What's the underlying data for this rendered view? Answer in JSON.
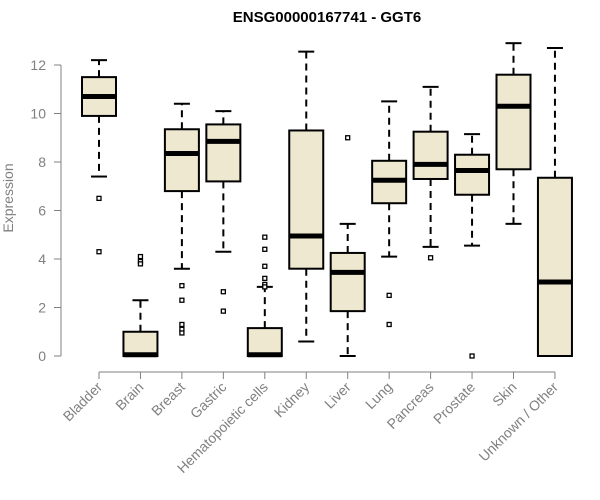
{
  "chart_data": {
    "type": "boxplot",
    "title": "ENSG00000167741 - GGT6",
    "xlabel": "",
    "ylabel": "Expression",
    "ylim": [
      0,
      12.5
    ],
    "yticks": [
      0,
      2,
      4,
      6,
      8,
      10,
      12
    ],
    "grid": false,
    "box_fill": "#efe8d0",
    "categories": [
      "Bladder",
      "Brain",
      "Breast",
      "Gastric",
      "Hematopoietic cells",
      "Kidney",
      "Liver",
      "Lung",
      "Pancreas",
      "Prostate",
      "Skin",
      "Unknown / Other"
    ],
    "boxes": [
      {
        "name": "Bladder",
        "whisker_low": 7.4,
        "q1": 9.9,
        "median": 10.7,
        "q3": 11.5,
        "whisker_high": 12.2,
        "outliers": [
          6.5,
          4.3
        ]
      },
      {
        "name": "Brain",
        "whisker_low": 0.0,
        "q1": 0.0,
        "median": 0.05,
        "q3": 1.0,
        "whisker_high": 2.3,
        "outliers": [
          4.1,
          3.9,
          3.8
        ]
      },
      {
        "name": "Breast",
        "whisker_low": 3.6,
        "q1": 6.8,
        "median": 8.35,
        "q3": 9.35,
        "whisker_high": 10.4,
        "outliers": [
          2.9,
          2.3,
          1.3,
          1.1,
          0.95
        ]
      },
      {
        "name": "Gastric",
        "whisker_low": 4.3,
        "q1": 7.2,
        "median": 8.85,
        "q3": 9.55,
        "whisker_high": 10.1,
        "outliers": [
          2.65,
          1.85
        ]
      },
      {
        "name": "Hematopoietic cells",
        "whisker_low": 0.0,
        "q1": 0.0,
        "median": 0.05,
        "q3": 1.15,
        "whisker_high": 2.85,
        "outliers": [
          4.9,
          4.4,
          3.7,
          3.2,
          2.95,
          2.85
        ]
      },
      {
        "name": "Kidney",
        "whisker_low": 0.6,
        "q1": 3.6,
        "median": 4.95,
        "q3": 9.3,
        "whisker_high": 12.55,
        "outliers": []
      },
      {
        "name": "Liver",
        "whisker_low": 0.0,
        "q1": 1.85,
        "median": 3.45,
        "q3": 4.25,
        "whisker_high": 5.45,
        "outliers": [
          9.0
        ]
      },
      {
        "name": "Lung",
        "whisker_low": 4.1,
        "q1": 6.3,
        "median": 7.25,
        "q3": 8.05,
        "whisker_high": 10.5,
        "outliers": [
          2.5,
          1.3
        ]
      },
      {
        "name": "Pancreas",
        "whisker_low": 4.5,
        "q1": 7.3,
        "median": 7.9,
        "q3": 9.25,
        "whisker_high": 11.1,
        "outliers": [
          4.05
        ]
      },
      {
        "name": "Prostate",
        "whisker_low": 4.55,
        "q1": 6.65,
        "median": 7.65,
        "q3": 8.3,
        "whisker_high": 9.15,
        "outliers": [
          0.0
        ]
      },
      {
        "name": "Skin",
        "whisker_low": 5.45,
        "q1": 7.7,
        "median": 10.3,
        "q3": 11.6,
        "whisker_high": 12.9,
        "outliers": []
      },
      {
        "name": "Unknown / Other",
        "whisker_low": 0.0,
        "q1": 0.0,
        "median": 3.05,
        "q3": 7.35,
        "whisker_high": 12.7,
        "outliers": []
      }
    ]
  }
}
